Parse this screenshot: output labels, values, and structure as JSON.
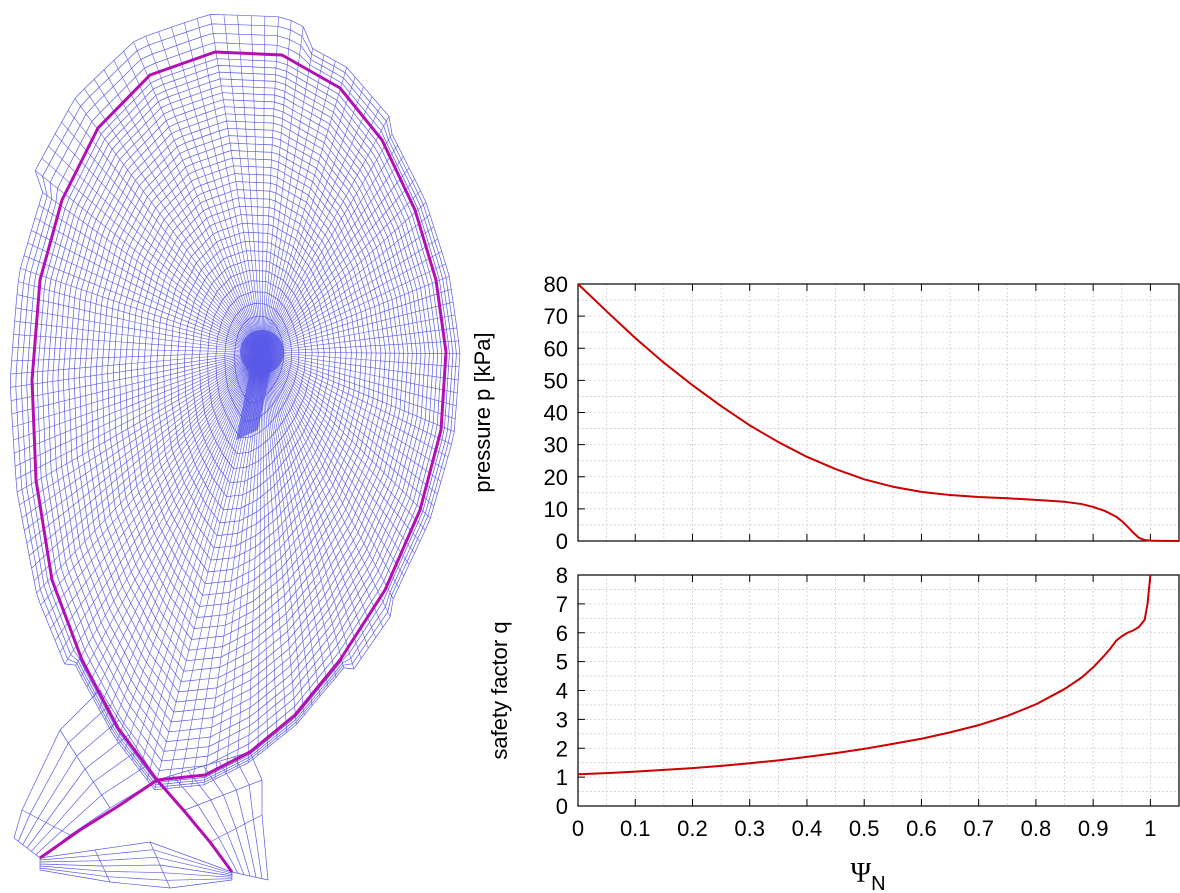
{
  "colors": {
    "mesh": "#5a5ae8",
    "separatrix": "#b30fb3",
    "curve": "#cc0000",
    "grid": "#bfbfbf"
  },
  "mesh": {
    "n_radial": 34,
    "n_poloidal": 150,
    "n_divertor_radial": 6
  },
  "chart_data": [
    {
      "type": "line",
      "panel": "pressure",
      "ylabel": "pressure p [kPa]",
      "xlim": [
        0,
        1.05
      ],
      "ylim": [
        0,
        80
      ],
      "x_ticks": [
        0,
        0.1,
        0.2,
        0.3,
        0.4,
        0.5,
        0.6,
        0.7,
        0.8,
        0.9,
        1
      ],
      "y_ticks": [
        "0",
        "10",
        "20",
        "30",
        "40",
        "50",
        "60",
        "70",
        "80"
      ],
      "grid": true,
      "series": [
        {
          "x": [
            0,
            0.05,
            0.1,
            0.15,
            0.2,
            0.25,
            0.3,
            0.35,
            0.4,
            0.45,
            0.5,
            0.55,
            0.6,
            0.65,
            0.7,
            0.75,
            0.8,
            0.85,
            0.88,
            0.9,
            0.92,
            0.94,
            0.95,
            0.96,
            0.97,
            0.98,
            0.99,
            1.0,
            1.02,
            1.05
          ],
          "y": [
            80,
            71.5,
            63.2,
            55.5,
            48.5,
            42.0,
            36.0,
            30.8,
            26.2,
            22.4,
            19.2,
            16.9,
            15.3,
            14.3,
            13.7,
            13.3,
            12.8,
            12.2,
            11.5,
            10.6,
            9.4,
            7.6,
            6.2,
            4.5,
            2.6,
            1.0,
            0.3,
            0.1,
            0.05,
            0
          ]
        }
      ]
    },
    {
      "type": "line",
      "panel": "safety-factor",
      "ylabel": "safety factor q",
      "xlabel": "Ψ",
      "xlabel_sub": "N",
      "xlim": [
        0,
        1.05
      ],
      "ylim": [
        0,
        8
      ],
      "x_ticks": [
        "0",
        "0.1",
        "0.2",
        "0.3",
        "0.4",
        "0.5",
        "0.6",
        "0.7",
        "0.8",
        "0.9",
        "1"
      ],
      "y_ticks": [
        "0",
        "1",
        "2",
        "3",
        "4",
        "5",
        "6",
        "7",
        "8"
      ],
      "grid": true,
      "series": [
        {
          "x": [
            0,
            0.05,
            0.1,
            0.15,
            0.2,
            0.25,
            0.3,
            0.35,
            0.4,
            0.45,
            0.5,
            0.55,
            0.6,
            0.65,
            0.7,
            0.75,
            0.8,
            0.85,
            0.88,
            0.9,
            0.92,
            0.93,
            0.94,
            0.95,
            0.96,
            0.97,
            0.98,
            0.99,
            0.995,
            1.0
          ],
          "y": [
            1.1,
            1.14,
            1.19,
            1.25,
            1.31,
            1.39,
            1.48,
            1.58,
            1.7,
            1.83,
            1.98,
            2.15,
            2.33,
            2.55,
            2.8,
            3.12,
            3.52,
            4.05,
            4.45,
            4.8,
            5.22,
            5.45,
            5.72,
            5.88,
            6.0,
            6.08,
            6.2,
            6.45,
            7.0,
            8.0
          ]
        }
      ]
    }
  ]
}
